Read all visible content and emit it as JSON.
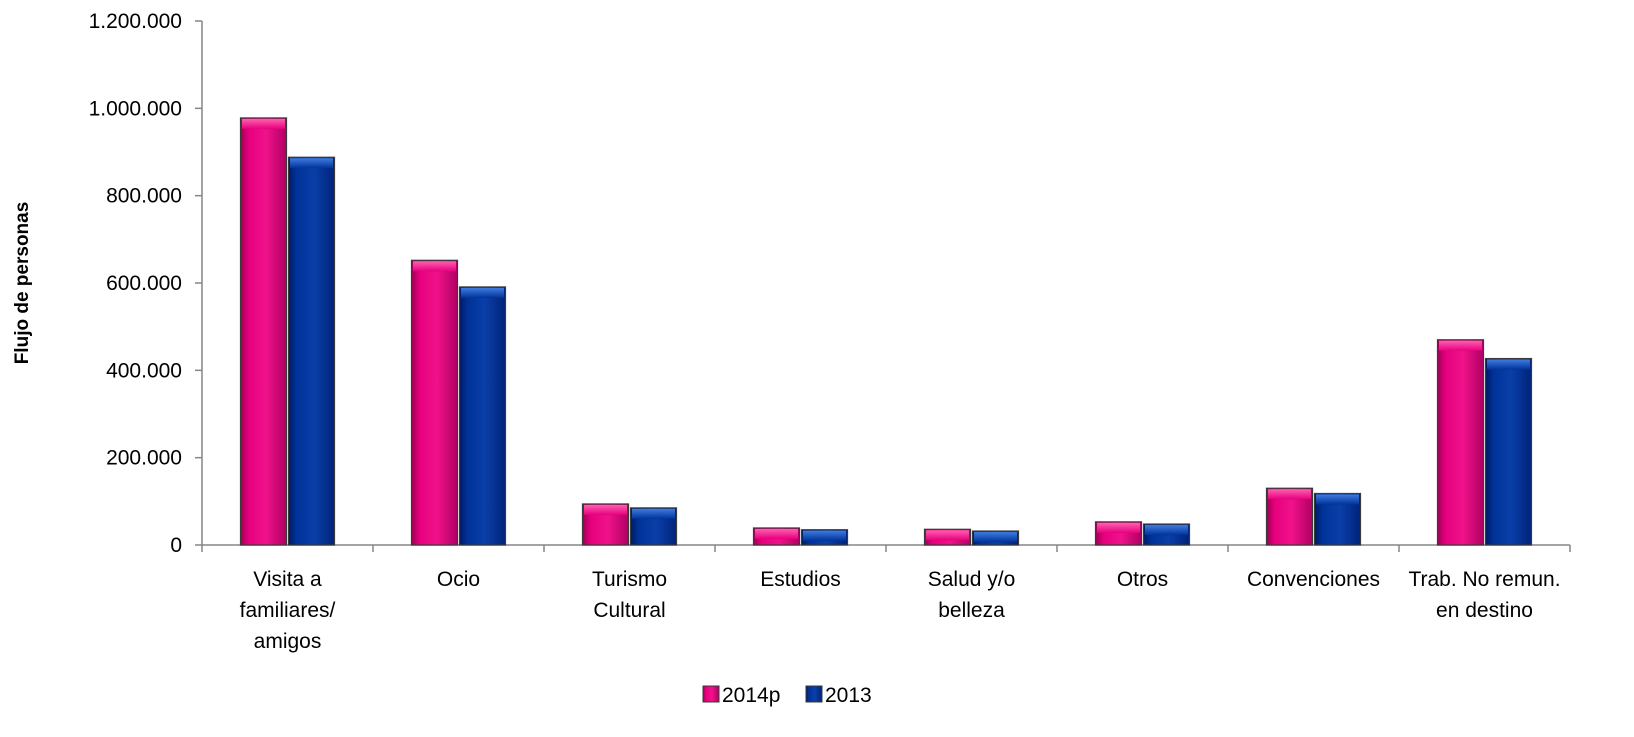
{
  "chart_data": {
    "type": "bar",
    "title": "",
    "xlabel": "",
    "ylabel": "Flujo de personas",
    "ylim": [
      0,
      1200000
    ],
    "yticks": [
      0,
      200000,
      400000,
      600000,
      800000,
      1000000,
      1200000
    ],
    "ytick_labels": [
      "0",
      "200.000",
      "400.000",
      "600.000",
      "800.000",
      "1.000.000",
      "1.200.000"
    ],
    "categories": [
      [
        "Visita a",
        "familiares/",
        "amigos"
      ],
      [
        "Ocio"
      ],
      [
        "Turismo",
        "Cultural"
      ],
      [
        "Estudios"
      ],
      [
        "Salud y/o",
        "belleza"
      ],
      [
        "Otros"
      ],
      [
        "Convenciones"
      ],
      [
        "Trab. No remun.",
        "en destino"
      ]
    ],
    "series": [
      {
        "name": "2014p",
        "color": "#e6007e",
        "values": [
          978000,
          652000,
          94000,
          39000,
          36000,
          53000,
          130000,
          470000
        ]
      },
      {
        "name": "2013",
        "color": "#003399",
        "values": [
          888000,
          591000,
          85000,
          35000,
          32000,
          48000,
          118000,
          427000
        ]
      }
    ],
    "grid": false,
    "legend": "bottom-center"
  }
}
